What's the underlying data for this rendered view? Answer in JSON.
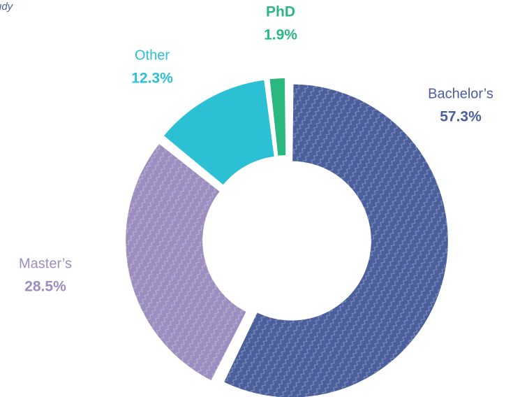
{
  "chart_data": {
    "type": "donut",
    "subtitle": "udy",
    "categories": [
      "Bachelor’s",
      "Master’s",
      "Other",
      "PhD"
    ],
    "values": [
      57.3,
      28.5,
      12.3,
      1.9
    ],
    "value_labels": [
      "57.3%",
      "28.5%",
      "12.3%",
      "1.9%"
    ],
    "colors": [
      "#4a5f9c",
      "#9c8ec0",
      "#2cc0d5",
      "#2bb880"
    ]
  }
}
